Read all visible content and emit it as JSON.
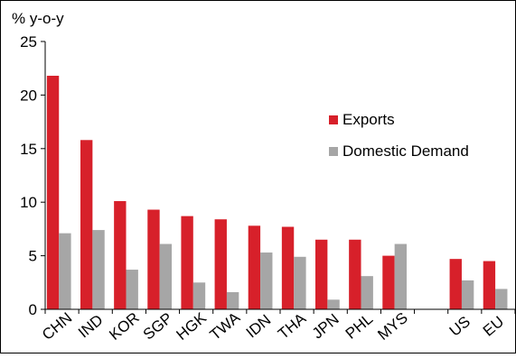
{
  "chart_data": {
    "type": "bar",
    "ylabel": "% y-o-y",
    "ylim": [
      0,
      25
    ],
    "yticks": [
      0,
      5,
      10,
      15,
      20,
      25
    ],
    "grid": false,
    "legend_position": "right",
    "categories": [
      "CHN",
      "IND",
      "KOR",
      "SGP",
      "HGK",
      "TWA",
      "IDN",
      "THA",
      "JPN",
      "PHL",
      "MYS",
      "",
      "US",
      "EU"
    ],
    "series": [
      {
        "name": "Exports",
        "color": "#d7202a",
        "values": [
          21.8,
          15.8,
          10.1,
          9.3,
          8.7,
          8.4,
          7.8,
          7.7,
          6.5,
          6.5,
          5.0,
          null,
          4.7,
          4.5
        ]
      },
      {
        "name": "Domestic Demand",
        "color": "#a6a6a6",
        "values": [
          7.1,
          7.4,
          3.7,
          6.1,
          2.5,
          1.6,
          5.3,
          4.9,
          0.9,
          3.1,
          6.1,
          null,
          2.7,
          1.9
        ]
      }
    ]
  }
}
